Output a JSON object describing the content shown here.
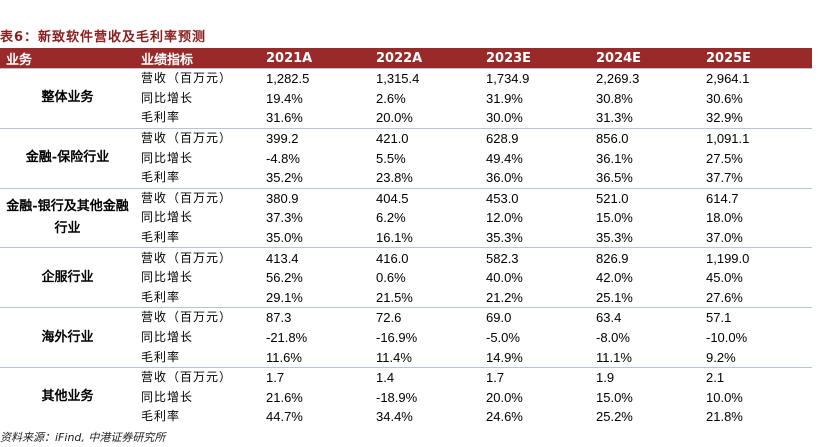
{
  "header": {
    "title": "表6：新致软件营收及毛利率预测"
  },
  "table": {
    "columns": [
      "业务",
      "业绩指标",
      "2021A",
      "2022A",
      "2023E",
      "2024E",
      "2025E"
    ],
    "groups": [
      {
        "name": "整体业务",
        "rows": [
          [
            "营收（百万元）",
            "1,282.5",
            "1,315.4",
            "1,734.9",
            "2,269.3",
            "2,964.1"
          ],
          [
            "同比增长",
            "19.4%",
            "2.6%",
            "31.9%",
            "30.8%",
            "30.6%"
          ],
          [
            "毛利率",
            "31.6%",
            "20.0%",
            "30.0%",
            "31.3%",
            "32.9%"
          ]
        ]
      },
      {
        "name": "金融-保险行业",
        "rows": [
          [
            "营收（百万元）",
            "399.2",
            "421.0",
            "628.9",
            "856.0",
            "1,091.1"
          ],
          [
            "同比增长",
            "-4.8%",
            "5.5%",
            "49.4%",
            "36.1%",
            "27.5%"
          ],
          [
            "毛利率",
            "35.2%",
            "23.8%",
            "36.0%",
            "36.5%",
            "37.7%"
          ]
        ]
      },
      {
        "name": "金融-银行及其他金融行业",
        "rows": [
          [
            "营收（百万元）",
            "380.9",
            "404.5",
            "453.0",
            "521.0",
            "614.7"
          ],
          [
            "同比增长",
            "37.3%",
            "6.2%",
            "12.0%",
            "15.0%",
            "18.0%"
          ],
          [
            "毛利率",
            "35.0%",
            "16.1%",
            "35.3%",
            "35.3%",
            "37.0%"
          ]
        ]
      },
      {
        "name": "企服行业",
        "rows": [
          [
            "营收（百万元）",
            "413.4",
            "416.0",
            "582.3",
            "826.9",
            "1,199.0"
          ],
          [
            "同比增长",
            "56.2%",
            "0.6%",
            "40.0%",
            "42.0%",
            "45.0%"
          ],
          [
            "毛利率",
            "29.1%",
            "21.5%",
            "21.2%",
            "25.1%",
            "27.6%"
          ]
        ]
      },
      {
        "name": "海外行业",
        "rows": [
          [
            "营收（百万元）",
            "87.3",
            "72.6",
            "69.0",
            "63.4",
            "57.1"
          ],
          [
            "同比增长",
            "-21.8%",
            "-16.9%",
            "-5.0%",
            "-8.0%",
            "-10.0%"
          ],
          [
            "毛利率",
            "11.6%",
            "11.4%",
            "14.9%",
            "11.1%",
            "9.2%"
          ]
        ]
      },
      {
        "name": "其他业务",
        "rows": [
          [
            "营收（百万元）",
            "1.7",
            "1.4",
            "1.7",
            "1.9",
            "2.1"
          ],
          [
            "同比增长",
            "21.6%",
            "-18.9%",
            "20.0%",
            "15.0%",
            "10.0%"
          ],
          [
            "毛利率",
            "44.7%",
            "34.4%",
            "24.6%",
            "25.2%",
            "21.8%"
          ]
        ]
      }
    ]
  },
  "source": "资料来源：iFind, 中港证券研究所"
}
